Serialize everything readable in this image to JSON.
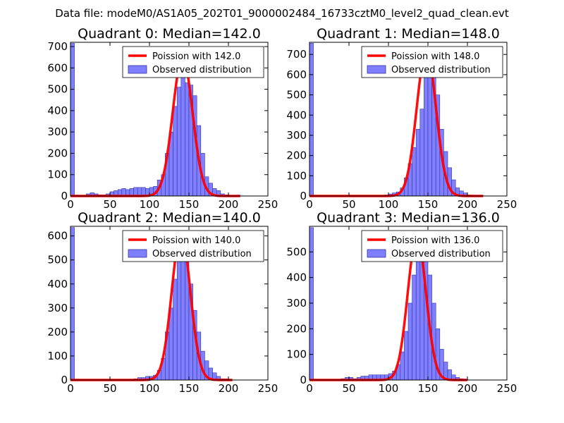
{
  "figure": {
    "suptitle": "Data file: modeM0/AS1A05_202T01_9000002484_16733cztM0_level2_quad_clean.evt"
  },
  "colors": {
    "bar_fill": "#7f7fff",
    "bar_edge": "#3333aa",
    "poisson_line": "#ff0000",
    "axis": "#000000"
  },
  "chart_data": [
    {
      "type": "bar",
      "title": "Quadrant 0: Median=142.0",
      "xlim": [
        0,
        250
      ],
      "ylim": [
        0,
        720
      ],
      "xticks": [
        0,
        50,
        100,
        150,
        200,
        250
      ],
      "yticks": [
        0,
        100,
        200,
        300,
        400,
        500,
        600,
        700
      ],
      "bin_width": 5,
      "bin_starts": [
        0,
        5,
        10,
        15,
        20,
        25,
        30,
        35,
        40,
        45,
        50,
        55,
        60,
        65,
        70,
        75,
        80,
        85,
        90,
        95,
        100,
        105,
        110,
        115,
        120,
        125,
        130,
        135,
        140,
        145,
        150,
        155,
        160,
        165,
        170,
        175,
        180,
        185,
        190,
        195,
        200,
        205,
        210,
        215
      ],
      "counts": [
        715,
        0,
        0,
        0,
        10,
        15,
        10,
        5,
        5,
        10,
        20,
        25,
        30,
        35,
        30,
        35,
        40,
        40,
        40,
        35,
        40,
        45,
        75,
        100,
        200,
        300,
        420,
        510,
        610,
        530,
        520,
        470,
        330,
        200,
        90,
        60,
        35,
        25,
        10,
        5,
        3,
        0,
        0,
        0
      ],
      "line_label": "Poission with 142.0",
      "bar_label": "Observed distribution",
      "line_peak": 650,
      "line_mean": 142.0,
      "line_sigma": 12.5,
      "line_xrange": [
        0,
        215
      ]
    },
    {
      "type": "bar",
      "title": "Quadrant 1: Median=148.0",
      "xlim": [
        0,
        250
      ],
      "ylim": [
        0,
        760
      ],
      "xticks": [
        0,
        50,
        100,
        150,
        200,
        250
      ],
      "yticks": [
        0,
        100,
        200,
        300,
        400,
        500,
        600,
        700
      ],
      "bin_width": 5,
      "bin_starts": [
        0,
        5,
        10,
        15,
        20,
        25,
        30,
        35,
        40,
        45,
        50,
        55,
        60,
        65,
        70,
        75,
        80,
        85,
        90,
        95,
        100,
        105,
        110,
        115,
        120,
        125,
        130,
        135,
        140,
        145,
        150,
        155,
        160,
        165,
        170,
        175,
        180,
        185,
        190,
        195,
        200,
        205,
        210,
        215
      ],
      "counts": [
        755,
        0,
        0,
        0,
        0,
        0,
        0,
        0,
        0,
        0,
        0,
        0,
        0,
        0,
        0,
        0,
        0,
        0,
        0,
        5,
        10,
        15,
        20,
        40,
        90,
        160,
        240,
        330,
        430,
        600,
        720,
        660,
        500,
        330,
        220,
        140,
        80,
        40,
        25,
        15,
        5,
        3,
        0,
        0
      ],
      "line_label": "Poission with 148.0",
      "bar_label": "Observed distribution",
      "line_peak": 720,
      "line_mean": 148.0,
      "line_sigma": 12.2,
      "line_xrange": [
        0,
        220
      ]
    },
    {
      "type": "bar",
      "title": "Quadrant 2: Median=140.0",
      "xlim": [
        0,
        250
      ],
      "ylim": [
        0,
        640
      ],
      "xticks": [
        0,
        50,
        100,
        150,
        200,
        250
      ],
      "yticks": [
        0,
        100,
        200,
        300,
        400,
        500,
        600
      ],
      "bin_width": 5,
      "bin_starts": [
        0,
        5,
        10,
        15,
        20,
        25,
        30,
        35,
        40,
        45,
        50,
        55,
        60,
        65,
        70,
        75,
        80,
        85,
        90,
        95,
        100,
        105,
        110,
        115,
        120,
        125,
        130,
        135,
        140,
        145,
        150,
        155,
        160,
        165,
        170,
        175,
        180,
        185,
        190,
        195,
        200,
        205
      ],
      "counts": [
        635,
        0,
        0,
        0,
        0,
        0,
        0,
        0,
        0,
        0,
        0,
        0,
        0,
        0,
        0,
        0,
        5,
        10,
        10,
        15,
        15,
        20,
        40,
        90,
        200,
        300,
        420,
        510,
        600,
        500,
        400,
        290,
        200,
        120,
        80,
        50,
        30,
        15,
        5,
        5,
        0,
        0
      ],
      "line_label": "Poission with 140.0",
      "bar_label": "Observed distribution",
      "line_peak": 610,
      "line_mean": 140.0,
      "line_sigma": 11.8,
      "line_xrange": [
        0,
        205
      ]
    },
    {
      "type": "bar",
      "title": "Quadrant 3: Median=136.0",
      "xlim": [
        0,
        250
      ],
      "ylim": [
        0,
        600
      ],
      "xticks": [
        0,
        50,
        100,
        150,
        200,
        250
      ],
      "yticks": [
        0,
        100,
        200,
        300,
        400,
        500
      ],
      "bin_width": 5,
      "bin_starts": [
        0,
        5,
        10,
        15,
        20,
        25,
        30,
        35,
        40,
        45,
        50,
        55,
        60,
        65,
        70,
        75,
        80,
        85,
        90,
        95,
        100,
        105,
        110,
        115,
        120,
        125,
        130,
        135,
        140,
        145,
        150,
        155,
        160,
        165,
        170,
        175,
        180,
        185,
        190,
        195,
        200
      ],
      "counts": [
        595,
        0,
        0,
        0,
        0,
        0,
        0,
        0,
        5,
        10,
        10,
        5,
        10,
        15,
        15,
        20,
        20,
        20,
        20,
        20,
        25,
        35,
        60,
        110,
        190,
        300,
        410,
        500,
        560,
        500,
        410,
        300,
        200,
        120,
        70,
        40,
        20,
        10,
        5,
        3,
        0
      ],
      "line_label": "Poission with 136.0",
      "bar_label": "Observed distribution",
      "line_peak": 560,
      "line_mean": 136.0,
      "line_sigma": 11.6,
      "line_xrange": [
        0,
        200
      ]
    }
  ]
}
